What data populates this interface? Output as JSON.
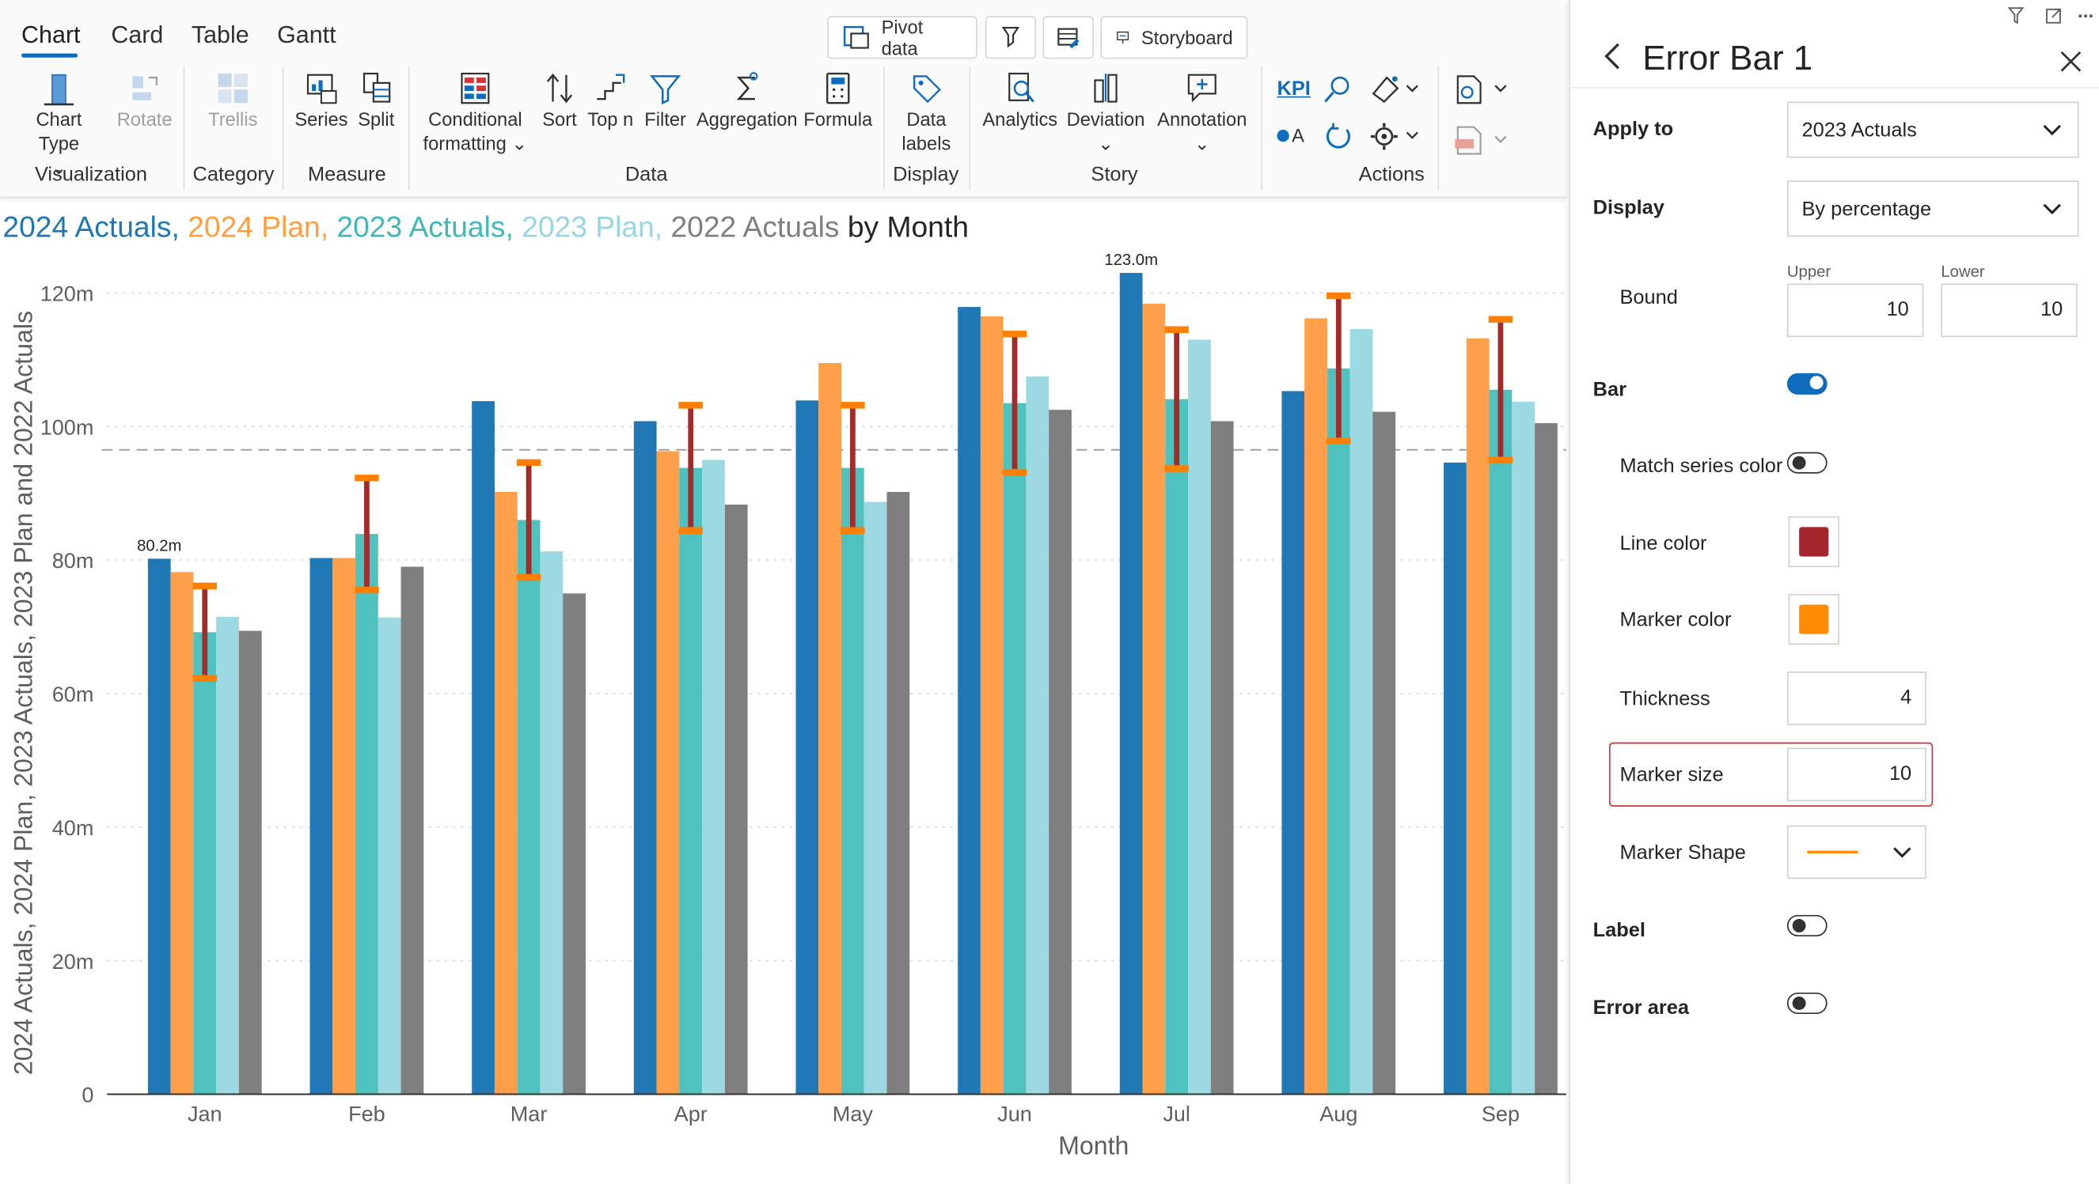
{
  "ribbon": {
    "tabs": [
      "Chart",
      "Card",
      "Table",
      "Gantt"
    ],
    "top_buttons": {
      "pivot": "Pivot data",
      "storyboard": "Storyboard"
    },
    "visualization": {
      "chart_type": "Chart Type",
      "rotate": "Rotate",
      "group": "Visualization"
    },
    "category": {
      "trellis": "Trellis",
      "group": "Category"
    },
    "measure": {
      "series": "Series",
      "split": "Split",
      "group": "Measure"
    },
    "data": {
      "conditional": "Conditional",
      "formatting": "formatting",
      "sort": "Sort",
      "topn": "Top n",
      "filter": "Filter",
      "aggregation": "Aggregation",
      "formula": "Formula",
      "group": "Data"
    },
    "display": {
      "data": "Data",
      "labels": "labels",
      "group": "Display"
    },
    "story": {
      "analytics": "Analytics",
      "deviation": "Deviation",
      "annotation": "Annotation",
      "group": "Story"
    },
    "actions": {
      "kpi": "KPI",
      "a": "A",
      "group": "Actions"
    }
  },
  "chart_title": {
    "parts": [
      {
        "text": "2024 Actuals, ",
        "color": "#1f77b4"
      },
      {
        "text": "2024 Plan, ",
        "color": "#ff9f40"
      },
      {
        "text": "2023 Actuals, ",
        "color": "#3fb8b8"
      },
      {
        "text": "2023 Plan, ",
        "color": "#96d7e3"
      },
      {
        "text": "2022 Actuals",
        "color": "#7f7f7f"
      },
      {
        "text": " by Month",
        "color": "#252423"
      }
    ]
  },
  "chart_data": {
    "type": "bar",
    "xlabel": "Month",
    "ylabel": "2024 Actuals, 2024 Plan, 2023 Actuals, 2023 Plan and 2022 Actuals",
    "y_ticks": [
      "0",
      "20m",
      "40m",
      "60m",
      "80m",
      "100m",
      "120m"
    ],
    "y_tick_values": [
      0,
      20,
      40,
      60,
      80,
      100,
      120
    ],
    "ylim": [
      0,
      120
    ],
    "grid": true,
    "reference_line": 96.5,
    "categories": [
      "Jan",
      "Feb",
      "Mar",
      "Apr",
      "May",
      "Jun",
      "Jul",
      "Aug",
      "Sep"
    ],
    "series": [
      {
        "name": "2024 Actuals",
        "color": "#1f77b4",
        "values": [
          80.2,
          80.3,
          103.8,
          100.8,
          103.9,
          117.9,
          123.0,
          105.3,
          94.6
        ]
      },
      {
        "name": "2024 Plan",
        "color": "#ff9f4a",
        "values": [
          78.2,
          80.3,
          90.2,
          96.3,
          109.5,
          116.5,
          118.4,
          116.2,
          113.2
        ]
      },
      {
        "name": "2023 Actuals",
        "color": "#4fc1bf",
        "values": [
          69.2,
          83.9,
          86.0,
          93.8,
          93.8,
          103.5,
          104.1,
          108.7,
          105.5
        ]
      },
      {
        "name": "2023 Plan",
        "color": "#9cd9e2",
        "values": [
          71.5,
          71.4,
          81.3,
          95.0,
          88.7,
          107.5,
          113.0,
          114.6,
          103.7
        ]
      },
      {
        "name": "2022 Actuals",
        "color": "#7f7f7f",
        "values": [
          69.4,
          79.0,
          75.0,
          88.3,
          90.2,
          102.5,
          100.8,
          102.2,
          100.5
        ]
      }
    ],
    "data_labels": [
      {
        "category": "Jan",
        "series": "2024 Actuals",
        "text": "80.2m"
      },
      {
        "category": "Jul",
        "series": "2024 Actuals",
        "text": "123.0m"
      }
    ],
    "error_bars": {
      "series": "2023 Actuals",
      "percent_upper": 10,
      "percent_lower": 10,
      "line_color": "#a52a2a",
      "marker_color": "#ff8000"
    }
  },
  "panel": {
    "title": "Error Bar 1",
    "apply_to": {
      "label": "Apply to",
      "value": "2023 Actuals"
    },
    "display": {
      "label": "Display",
      "value": "By percentage"
    },
    "bound": {
      "label": "Bound",
      "upper_label": "Upper",
      "upper": "10",
      "lower_label": "Lower",
      "lower": "10"
    },
    "bar": {
      "label": "Bar",
      "on": true
    },
    "match_series_color": {
      "label": "Match series color",
      "on": false
    },
    "line_color": {
      "label": "Line color",
      "color": "#a4262c"
    },
    "marker_color": {
      "label": "Marker color",
      "color": "#ff8c00"
    },
    "thickness": {
      "label": "Thickness",
      "value": "4"
    },
    "marker_size": {
      "label": "Marker size",
      "value": "10"
    },
    "marker_shape": {
      "label": "Marker Shape"
    },
    "label": {
      "label": "Label",
      "on": false
    },
    "error_area": {
      "label": "Error area",
      "on": false
    }
  }
}
